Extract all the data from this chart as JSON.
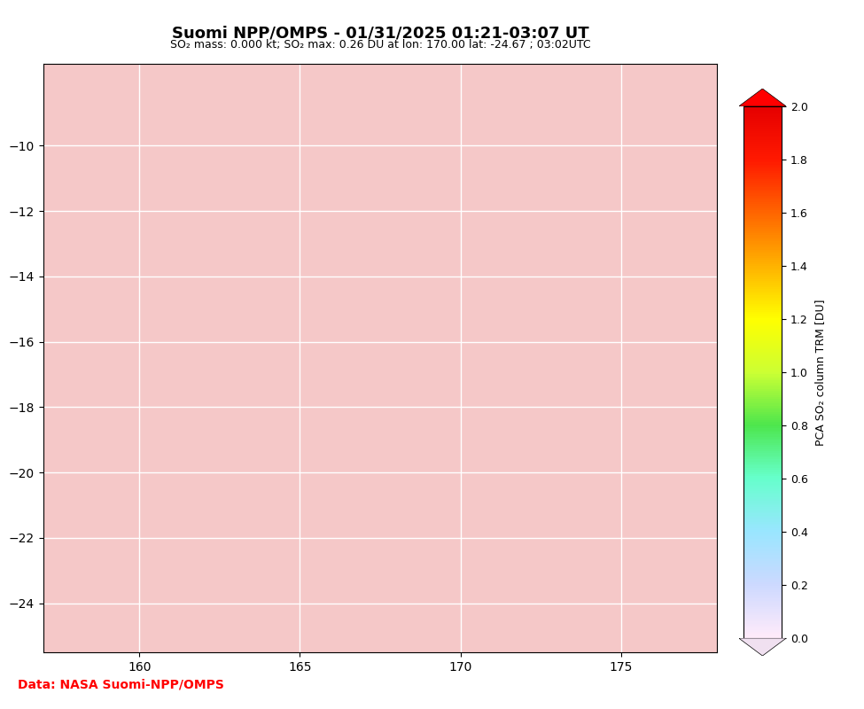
{
  "title": "Suomi NPP/OMPS - 01/31/2025 01:21-03:07 UT",
  "subtitle": "SO₂ mass: 0.000 kt; SO₂ max: 0.26 DU at lon: 170.00 lat: -24.67 ; 03:02UTC",
  "data_credit": "Data: NASA Suomi-NPP/OMPS",
  "lon_min": 157,
  "lon_max": 178,
  "lat_min": -25.5,
  "lat_max": -7.5,
  "xticks": [
    160,
    165,
    170,
    175
  ],
  "yticks": [
    -10,
    -12,
    -14,
    -16,
    -18,
    -20,
    -22,
    -24
  ],
  "colorbar_label": "PCA SO₂ column TRM [DU]",
  "colorbar_vmin": 0.0,
  "colorbar_vmax": 2.0,
  "colorbar_ticks": [
    0.0,
    0.2,
    0.4,
    0.6,
    0.8,
    1.0,
    1.2,
    1.4,
    1.6,
    1.8,
    2.0
  ],
  "background_color": "#f5c8c8",
  "land_color": "#d3d3d3",
  "ocean_color": "#f5c8c8",
  "grid_color": "white",
  "title_color": "black",
  "subtitle_color": "black",
  "credit_color": "red",
  "map_bg": "#f0b8b8"
}
